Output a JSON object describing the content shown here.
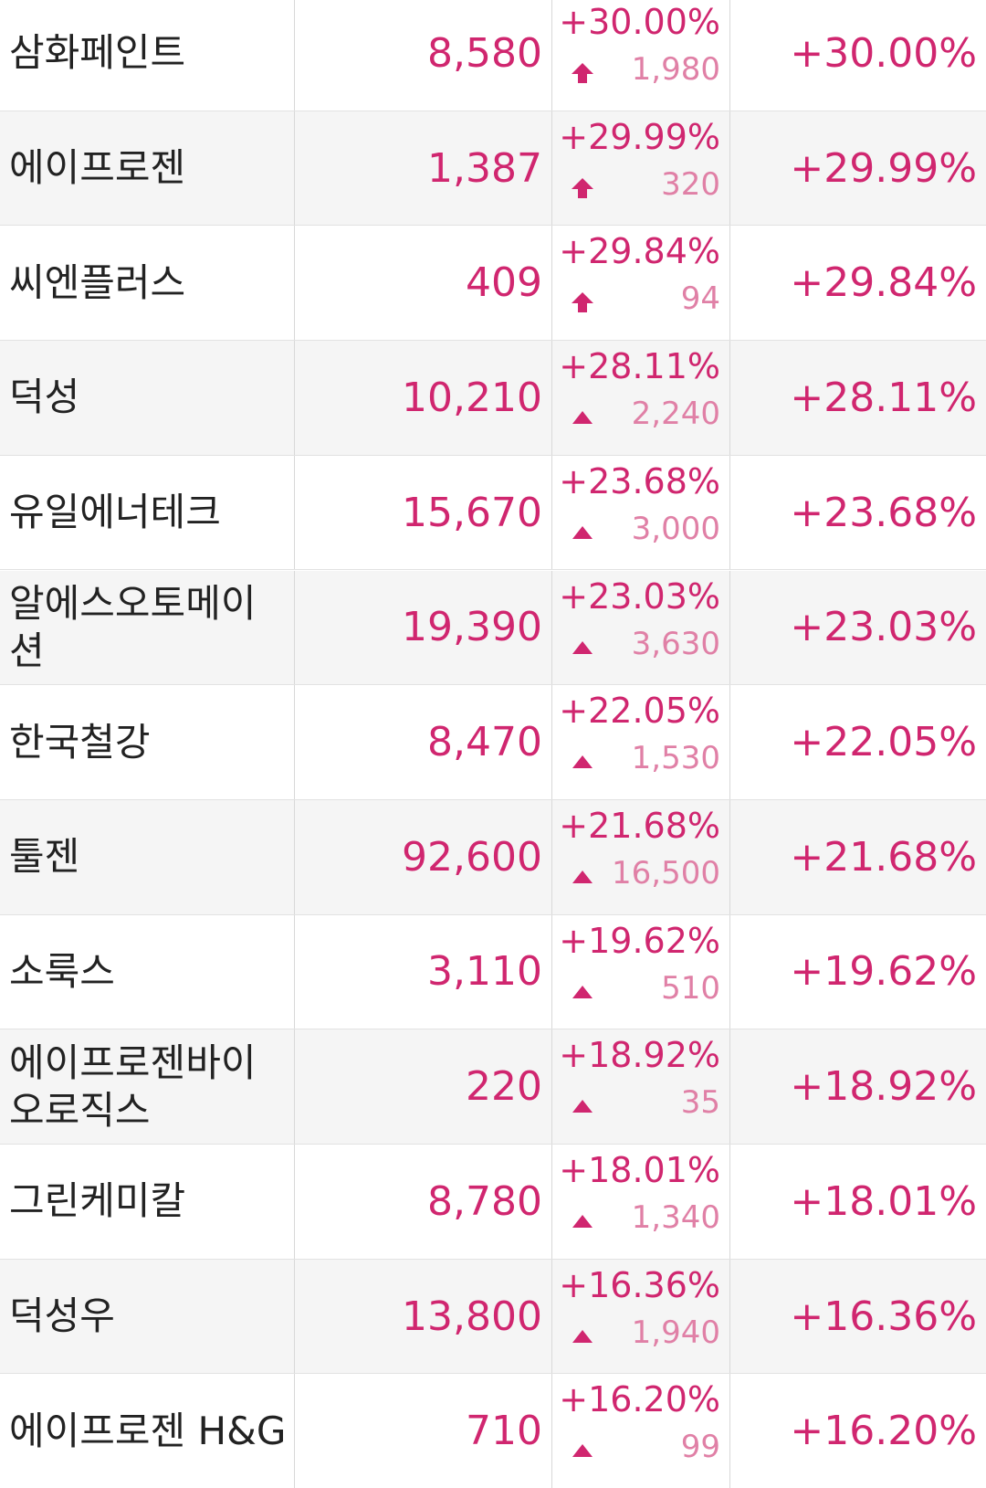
{
  "table": {
    "rows": [
      {
        "name": "삼화페인트",
        "price": "8,580",
        "change_rate": "+30.00%",
        "change_amount": "1,980",
        "limit_up": true,
        "rate": "+30.00%"
      },
      {
        "name": "에이프로젠",
        "price": "1,387",
        "change_rate": "+29.99%",
        "change_amount": "320",
        "limit_up": true,
        "rate": "+29.99%"
      },
      {
        "name": "씨엔플러스",
        "price": "409",
        "change_rate": "+29.84%",
        "change_amount": "94",
        "limit_up": true,
        "rate": "+29.84%"
      },
      {
        "name": "덕성",
        "price": "10,210",
        "change_rate": "+28.11%",
        "change_amount": "2,240",
        "limit_up": false,
        "rate": "+28.11%"
      },
      {
        "name": "유일에너테크",
        "price": "15,670",
        "change_rate": "+23.68%",
        "change_amount": "3,000",
        "limit_up": false,
        "rate": "+23.68%"
      },
      {
        "name": "알에스오토메이션",
        "price": "19,390",
        "change_rate": "+23.03%",
        "change_amount": "3,630",
        "limit_up": false,
        "rate": "+23.03%"
      },
      {
        "name": "한국철강",
        "price": "8,470",
        "change_rate": "+22.05%",
        "change_amount": "1,530",
        "limit_up": false,
        "rate": "+22.05%"
      },
      {
        "name": "툴젠",
        "price": "92,600",
        "change_rate": "+21.68%",
        "change_amount": "16,500",
        "limit_up": false,
        "rate": "+21.68%"
      },
      {
        "name": "소룩스",
        "price": "3,110",
        "change_rate": "+19.62%",
        "change_amount": "510",
        "limit_up": false,
        "rate": "+19.62%"
      },
      {
        "name": "에이프로젠바이오로직스",
        "price": "220",
        "change_rate": "+18.92%",
        "change_amount": "35",
        "limit_up": false,
        "rate": "+18.92%"
      },
      {
        "name": "그린케미칼",
        "price": "8,780",
        "change_rate": "+18.01%",
        "change_amount": "1,340",
        "limit_up": false,
        "rate": "+18.01%"
      },
      {
        "name": "덕성우",
        "price": "13,800",
        "change_rate": "+16.36%",
        "change_amount": "1,940",
        "limit_up": false,
        "rate": "+16.36%"
      },
      {
        "name": "에이프로젠 H&G",
        "price": "710",
        "change_rate": "+16.20%",
        "change_amount": "99",
        "limit_up": false,
        "rate": "+16.20%"
      }
    ]
  }
}
